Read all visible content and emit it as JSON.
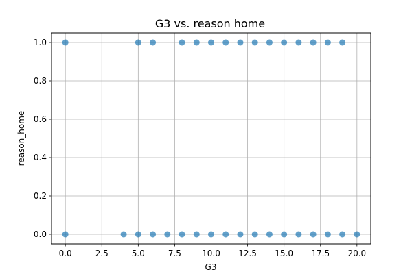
{
  "chart_data": {
    "type": "scatter",
    "title": "G3 vs. reason home",
    "xlabel": "G3",
    "ylabel": "reason_home",
    "xlim": [
      -0.95,
      20.95
    ],
    "ylim": [
      -0.05,
      1.05
    ],
    "xticks": [
      0.0,
      2.5,
      5.0,
      7.5,
      10.0,
      12.5,
      15.0,
      17.5,
      20.0
    ],
    "xtick_labels": [
      "0.0",
      "2.5",
      "5.0",
      "7.5",
      "10.0",
      "12.5",
      "15.0",
      "17.5",
      "20.0"
    ],
    "yticks": [
      0.0,
      0.2,
      0.4,
      0.6,
      0.8,
      1.0
    ],
    "ytick_labels": [
      "0.0",
      "0.2",
      "0.4",
      "0.6",
      "0.8",
      "1.0"
    ],
    "grid": true,
    "marker_color": "#1f77b4",
    "marker_alpha": 0.7,
    "points": [
      {
        "x": 0,
        "y": 1
      },
      {
        "x": 5,
        "y": 1
      },
      {
        "x": 6,
        "y": 1
      },
      {
        "x": 8,
        "y": 1
      },
      {
        "x": 9,
        "y": 1
      },
      {
        "x": 10,
        "y": 1
      },
      {
        "x": 11,
        "y": 1
      },
      {
        "x": 12,
        "y": 1
      },
      {
        "x": 13,
        "y": 1
      },
      {
        "x": 14,
        "y": 1
      },
      {
        "x": 15,
        "y": 1
      },
      {
        "x": 16,
        "y": 1
      },
      {
        "x": 17,
        "y": 1
      },
      {
        "x": 18,
        "y": 1
      },
      {
        "x": 19,
        "y": 1
      },
      {
        "x": 0,
        "y": 0
      },
      {
        "x": 4,
        "y": 0
      },
      {
        "x": 5,
        "y": 0
      },
      {
        "x": 6,
        "y": 0
      },
      {
        "x": 7,
        "y": 0
      },
      {
        "x": 8,
        "y": 0
      },
      {
        "x": 9,
        "y": 0
      },
      {
        "x": 10,
        "y": 0
      },
      {
        "x": 11,
        "y": 0
      },
      {
        "x": 12,
        "y": 0
      },
      {
        "x": 13,
        "y": 0
      },
      {
        "x": 14,
        "y": 0
      },
      {
        "x": 15,
        "y": 0
      },
      {
        "x": 16,
        "y": 0
      },
      {
        "x": 17,
        "y": 0
      },
      {
        "x": 18,
        "y": 0
      },
      {
        "x": 19,
        "y": 0
      },
      {
        "x": 20,
        "y": 0
      }
    ]
  }
}
